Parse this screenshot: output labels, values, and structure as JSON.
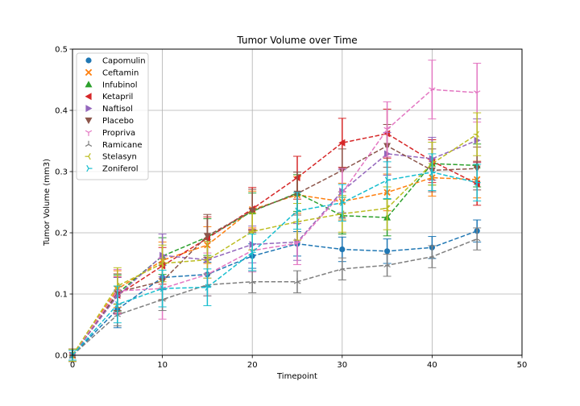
{
  "chart_data": {
    "type": "line",
    "title": "Tumor Volume over Time",
    "xlabel": "Timepoint",
    "ylabel": "Tumor Volume (mm3)",
    "xlim": [
      0,
      50
    ],
    "ylim": [
      0,
      0.5
    ],
    "xticks": [
      "0",
      "10",
      "20",
      "30",
      "40",
      "50"
    ],
    "yticks": [
      "0.0",
      "0.1",
      "0.2",
      "0.3",
      "0.4",
      "0.5"
    ],
    "grid": true,
    "legend_position": "top-left",
    "x": [
      0,
      5,
      10,
      15,
      20,
      25,
      30,
      35,
      40,
      45
    ],
    "series": [
      {
        "name": "Capomulin",
        "color": "#1f77b4",
        "marker": "circle",
        "values": [
          0.0,
          0.075,
          0.127,
          0.132,
          0.162,
          0.182,
          0.173,
          0.17,
          0.176,
          0.203
        ],
        "errors": [
          0.01,
          0.03,
          0.02,
          0.02,
          0.02,
          0.02,
          0.02,
          0.02,
          0.018,
          0.018
        ]
      },
      {
        "name": "Ceftamin",
        "color": "#ff7f0e",
        "marker": "x",
        "values": [
          0.0,
          0.108,
          0.155,
          0.18,
          0.238,
          0.262,
          0.251,
          0.266,
          0.29,
          0.287
        ],
        "errors": [
          0.01,
          0.03,
          0.03,
          0.03,
          0.03,
          0.03,
          0.03,
          0.03,
          0.03,
          0.03
        ]
      },
      {
        "name": "Infubinol",
        "color": "#2ca02c",
        "marker": "triangle-up",
        "values": [
          0.0,
          0.101,
          0.162,
          0.193,
          0.235,
          0.265,
          0.228,
          0.225,
          0.313,
          0.31
        ],
        "errors": [
          0.01,
          0.03,
          0.03,
          0.03,
          0.03,
          0.03,
          0.03,
          0.03,
          0.035,
          0.035
        ]
      },
      {
        "name": "Ketapril",
        "color": "#d62728",
        "marker": "triangle-left",
        "values": [
          0.0,
          0.098,
          0.146,
          0.191,
          0.239,
          0.29,
          0.347,
          0.362,
          0.317,
          0.28
        ],
        "errors": [
          0.01,
          0.03,
          0.03,
          0.035,
          0.035,
          0.035,
          0.04,
          0.04,
          0.035,
          0.035
        ]
      },
      {
        "name": "Naftisol",
        "color": "#9467bd",
        "marker": "triangle-right",
        "values": [
          0.0,
          0.097,
          0.163,
          0.156,
          0.181,
          0.185,
          0.268,
          0.329,
          0.321,
          0.351
        ],
        "errors": [
          0.01,
          0.03,
          0.035,
          0.03,
          0.03,
          0.03,
          0.035,
          0.035,
          0.035,
          0.035
        ]
      },
      {
        "name": "Placebo",
        "color": "#8c564b",
        "marker": "triangle-down",
        "values": [
          0.0,
          0.103,
          0.121,
          0.195,
          0.236,
          0.264,
          0.302,
          0.342,
          0.302,
          0.305
        ],
        "errors": [
          0.01,
          0.03,
          0.03,
          0.035,
          0.035,
          0.035,
          0.035,
          0.035,
          0.035,
          0.035
        ]
      },
      {
        "name": "Propriva",
        "color": "#e377c2",
        "marker": "tri-down",
        "values": [
          0.0,
          0.105,
          0.109,
          0.132,
          0.171,
          0.183,
          0.265,
          0.369,
          0.434,
          0.429
        ],
        "errors": [
          0.01,
          0.035,
          0.05,
          0.035,
          0.035,
          0.035,
          0.04,
          0.045,
          0.048,
          0.048
        ]
      },
      {
        "name": "Ramicane",
        "color": "#7f7f7f",
        "marker": "tri-up",
        "values": [
          0.0,
          0.066,
          0.091,
          0.115,
          0.12,
          0.12,
          0.141,
          0.147,
          0.161,
          0.19
        ],
        "errors": [
          0.008,
          0.018,
          0.018,
          0.018,
          0.018,
          0.018,
          0.018,
          0.018,
          0.018,
          0.018
        ]
      },
      {
        "name": "Stelasyn",
        "color": "#bcbd22",
        "marker": "tri-left",
        "values": [
          0.0,
          0.113,
          0.15,
          0.156,
          0.202,
          0.218,
          0.231,
          0.24,
          0.313,
          0.361
        ],
        "errors": [
          0.01,
          0.03,
          0.03,
          0.03,
          0.03,
          0.03,
          0.03,
          0.035,
          0.035,
          0.035
        ]
      },
      {
        "name": "Zoniferol",
        "color": "#17becf",
        "marker": "tri-right",
        "values": [
          0.0,
          0.083,
          0.109,
          0.111,
          0.168,
          0.236,
          0.249,
          0.286,
          0.299,
          0.282
        ],
        "errors": [
          0.008,
          0.03,
          0.03,
          0.03,
          0.03,
          0.03,
          0.03,
          0.03,
          0.03,
          0.03
        ]
      }
    ]
  }
}
